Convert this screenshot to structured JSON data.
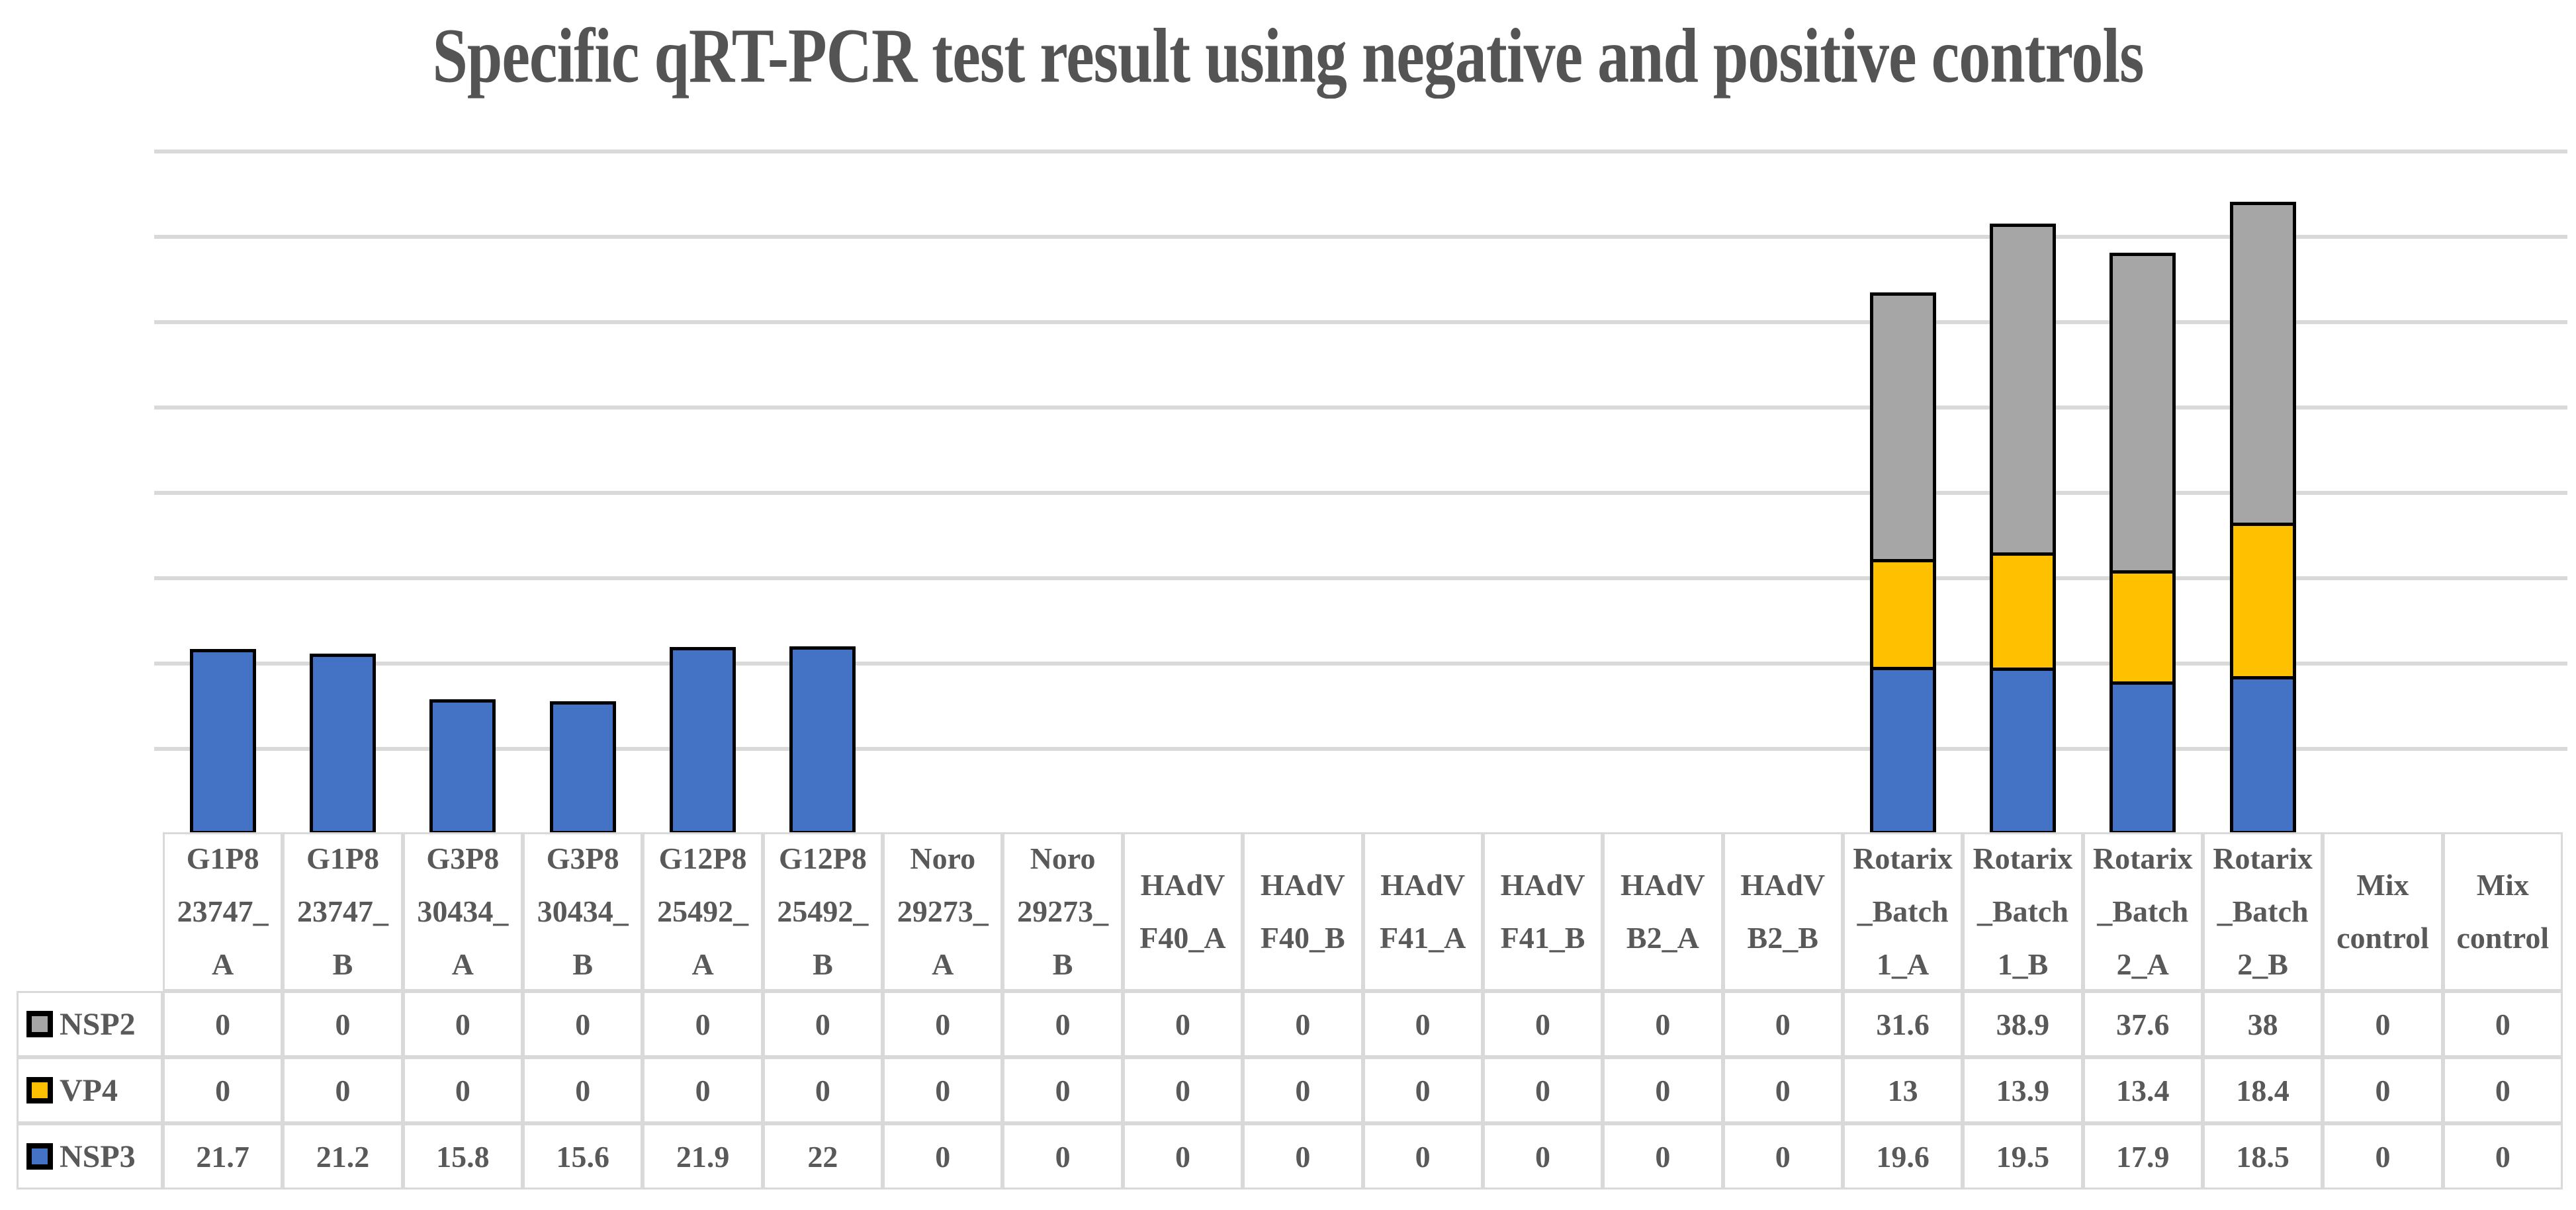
{
  "title": "Specific qRT-PCR test result using negative and positive controls",
  "colors": {
    "nsp3_blue": "#4472C4",
    "vp4_yellow": "#FFC000",
    "nsp2_gray": "#A6A6A6",
    "bar_outline": "#000000",
    "gridline": "#D9D9D9",
    "table_border": "#D9D9D9",
    "text": "#595959"
  },
  "chart_data": {
    "type": "bar",
    "stacked": true,
    "title": "Specific qRT-PCR test result using negative and positive controls",
    "xlabel": "",
    "ylabel": "",
    "ylim": [
      0,
      80
    ],
    "gridline_step": 10,
    "grid": true,
    "y_axis_labels_visible": false,
    "legend_position": "data-table-left",
    "categories": [
      "G1P8 23747_A",
      "G1P8 23747_B",
      "G3P8 30434_A",
      "G3P8 30434_B",
      "G12P8 25492_A",
      "G12P8 25492_B",
      "Noro 29273_A",
      "Noro 29273_B",
      "HAdV F40_A",
      "HAdV F40_B",
      "HAdV F41_A",
      "HAdV F41_B",
      "HAdV B2_A",
      "HAdV B2_B",
      "Rotarix_Batch 1_A",
      "Rotarix_Batch 1_B",
      "Rotarix_Batch 2_A",
      "Rotarix_Batch 2_B",
      "Mix control",
      "Mix control"
    ],
    "category_lines": [
      [
        "G1P8",
        "23747_",
        "A"
      ],
      [
        "G1P8",
        "23747_",
        "B"
      ],
      [
        "G3P8",
        "30434_",
        "A"
      ],
      [
        "G3P8",
        "30434_",
        "B"
      ],
      [
        "G12P8",
        "25492_",
        "A"
      ],
      [
        "G12P8",
        "25492_",
        "B"
      ],
      [
        "Noro",
        "29273_",
        "A"
      ],
      [
        "Noro",
        "29273_",
        "B"
      ],
      [
        "HAdV",
        "F40_A"
      ],
      [
        "HAdV",
        "F40_B"
      ],
      [
        "HAdV",
        "F41_A"
      ],
      [
        "HAdV",
        "F41_B"
      ],
      [
        "HAdV",
        "B2_A"
      ],
      [
        "HAdV",
        "B2_B"
      ],
      [
        "Rotarix",
        "_Batch",
        "1_A"
      ],
      [
        "Rotarix",
        "_Batch",
        "1_B"
      ],
      [
        "Rotarix",
        "_Batch",
        "2_A"
      ],
      [
        "Rotarix",
        "_Batch",
        "2_B"
      ],
      [
        "Mix",
        "control"
      ],
      [
        "Mix",
        "control"
      ]
    ],
    "series": [
      {
        "name": "NSP3",
        "color": "#4472C4",
        "values": [
          21.7,
          21.2,
          15.8,
          15.6,
          21.9,
          22,
          0,
          0,
          0,
          0,
          0,
          0,
          0,
          0,
          19.6,
          19.5,
          17.9,
          18.5,
          0,
          0
        ]
      },
      {
        "name": "VP4",
        "color": "#FFC000",
        "values": [
          0,
          0,
          0,
          0,
          0,
          0,
          0,
          0,
          0,
          0,
          0,
          0,
          0,
          0,
          13,
          13.9,
          13.4,
          18.4,
          0,
          0
        ]
      },
      {
        "name": "NSP2",
        "color": "#A6A6A6",
        "values": [
          0,
          0,
          0,
          0,
          0,
          0,
          0,
          0,
          0,
          0,
          0,
          0,
          0,
          0,
          31.6,
          38.9,
          37.6,
          38,
          0,
          0
        ]
      }
    ],
    "stack_order_bottom_to_top": [
      "NSP3",
      "VP4",
      "NSP2"
    ],
    "table_row_order_top_to_bottom": [
      "NSP2",
      "VP4",
      "NSP3"
    ]
  }
}
